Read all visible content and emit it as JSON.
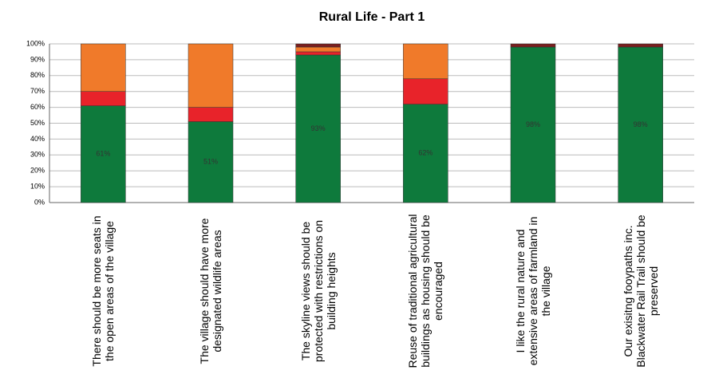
{
  "chart_data": {
    "type": "stacked_bar",
    "title": "Rural Life - Part 1",
    "categories": [
      "There should be more seats in the open areas of the village",
      "The village should have more designated wildlife areas",
      "The skyline views should be protected with restrictions on building heights",
      "Reuse of traditional agricultural buildings as housing should be encouraged",
      "I like the rural nature and extensive areas of farmland in the village",
      "Our exisitng fooypaths inc. Blackwater Rail Trail should be preserved"
    ],
    "series": [
      {
        "color": "#0e7a3c",
        "values": [
          61,
          51,
          93,
          62,
          98,
          98
        ],
        "value_labels": [
          "61%",
          "51%",
          "93%",
          "62%",
          "98%",
          "98%"
        ]
      },
      {
        "color": "#e8232a",
        "values": [
          9,
          9,
          2,
          16,
          0,
          0
        ]
      },
      {
        "color": "#f07a2a",
        "values": [
          30,
          40,
          3,
          22,
          0,
          0
        ]
      },
      {
        "color": "#7a1f1f",
        "values": [
          0,
          0,
          2,
          0,
          2,
          2
        ]
      }
    ],
    "ylim": [
      0,
      100
    ],
    "yticks": [
      {
        "value": 0,
        "label": "0%"
      },
      {
        "value": 10,
        "label": "10%"
      },
      {
        "value": 20,
        "label": "20%"
      },
      {
        "value": 30,
        "label": "30%"
      },
      {
        "value": 40,
        "label": "40%"
      },
      {
        "value": 50,
        "label": "50%"
      },
      {
        "value": 60,
        "label": "60%"
      },
      {
        "value": 70,
        "label": "70%"
      },
      {
        "value": 80,
        "label": "80%"
      },
      {
        "value": 90,
        "label": "90%"
      },
      {
        "value": 100,
        "label": "100%"
      }
    ],
    "grid": true
  }
}
